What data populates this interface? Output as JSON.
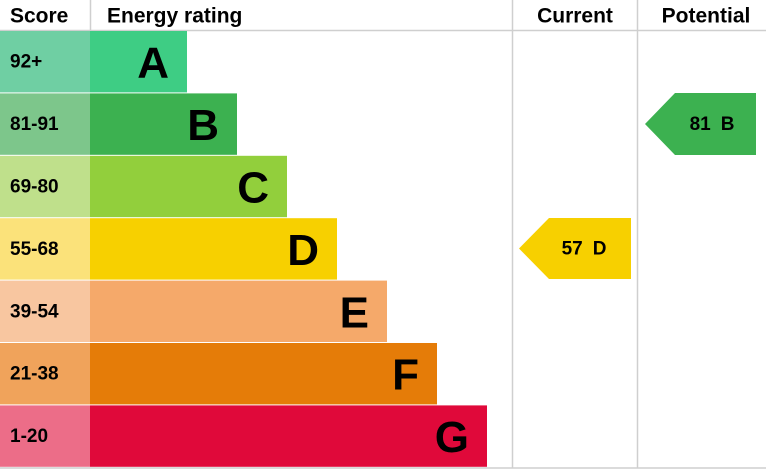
{
  "header": {
    "score": "Score",
    "rating": "Energy rating",
    "current": "Current",
    "potential": "Potential"
  },
  "bands": [
    {
      "score": "92+",
      "letter": "A"
    },
    {
      "score": "81-91",
      "letter": "B"
    },
    {
      "score": "69-80",
      "letter": "C"
    },
    {
      "score": "55-68",
      "letter": "D"
    },
    {
      "score": "39-54",
      "letter": "E"
    },
    {
      "score": "21-38",
      "letter": "F"
    },
    {
      "score": "1-20",
      "letter": "G"
    }
  ],
  "current": {
    "value": 57,
    "letter": "D"
  },
  "potential": {
    "value": 81,
    "letter": "B"
  }
}
